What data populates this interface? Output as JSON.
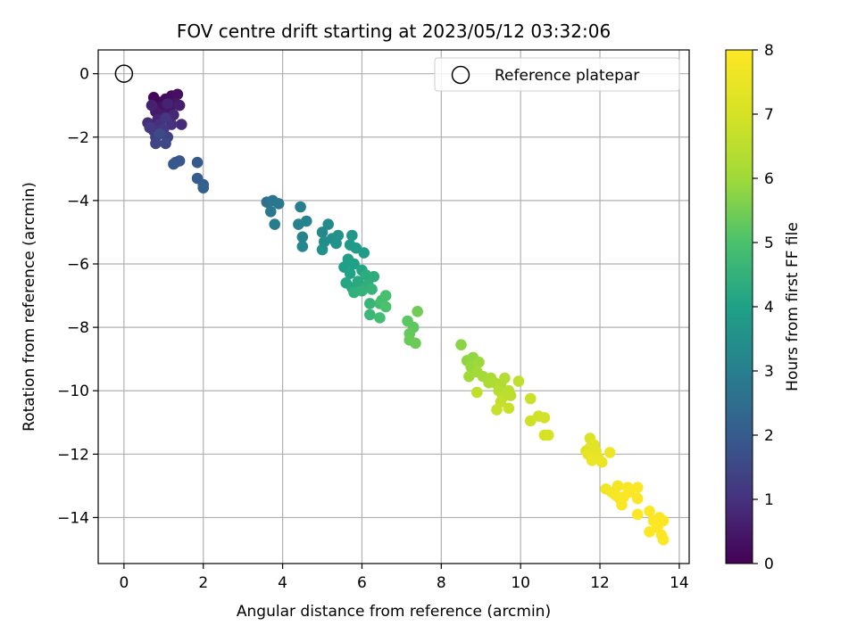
{
  "chart_data": {
    "type": "scatter",
    "title": "FOV centre drift starting at 2023/05/12 03:32:06",
    "xlabel": "Angular distance from reference (arcmin)",
    "ylabel": "Rotation from reference (arcmin)",
    "xlim": [
      -0.65,
      14.25
    ],
    "ylim": [
      -15.45,
      0.75
    ],
    "x_ticks": [
      0,
      2,
      4,
      6,
      8,
      10,
      12,
      14
    ],
    "y_ticks": [
      0,
      -2,
      -4,
      -6,
      -8,
      -10,
      -12,
      -14
    ],
    "x_tick_labels": [
      "0",
      "2",
      "4",
      "6",
      "8",
      "10",
      "12",
      "14"
    ],
    "y_tick_labels": [
      "0",
      "−2",
      "−4",
      "−6",
      "−8",
      "−10",
      "−12",
      "−14"
    ],
    "grid": true,
    "legend": {
      "placement": "top-right",
      "label": "Reference platepar",
      "marker": "open-circle"
    },
    "reference_point": {
      "x": 0,
      "y": 0
    },
    "colorbar": {
      "label": "Hours from first FF file",
      "range": [
        0,
        8
      ],
      "ticks": [
        0,
        1,
        2,
        3,
        4,
        5,
        6,
        7,
        8
      ],
      "tick_labels": [
        "0",
        "1",
        "2",
        "3",
        "4",
        "5",
        "6",
        "7",
        "8"
      ],
      "colormap": "viridis"
    },
    "points": [
      {
        "x": 0.75,
        "y": -0.75,
        "h": 0.1
      },
      {
        "x": 0.9,
        "y": -0.9,
        "h": 0.15
      },
      {
        "x": 1.05,
        "y": -0.8,
        "h": 0.2
      },
      {
        "x": 1.2,
        "y": -0.7,
        "h": 0.25
      },
      {
        "x": 1.35,
        "y": -0.65,
        "h": 0.3
      },
      {
        "x": 0.95,
        "y": -1.05,
        "h": 0.35
      },
      {
        "x": 1.15,
        "y": -1.1,
        "h": 0.4
      },
      {
        "x": 1.3,
        "y": -0.95,
        "h": 0.45
      },
      {
        "x": 0.8,
        "y": -1.2,
        "h": 0.5
      },
      {
        "x": 1.0,
        "y": -1.3,
        "h": 0.55
      },
      {
        "x": 1.4,
        "y": -1.0,
        "h": 0.6
      },
      {
        "x": 0.7,
        "y": -1.0,
        "h": 0.65
      },
      {
        "x": 1.1,
        "y": -0.95,
        "h": 0.7
      },
      {
        "x": 0.85,
        "y": -1.45,
        "h": 0.75
      },
      {
        "x": 1.25,
        "y": -1.3,
        "h": 0.8
      },
      {
        "x": 1.45,
        "y": -1.6,
        "h": 0.85
      },
      {
        "x": 0.6,
        "y": -1.55,
        "h": 0.9
      },
      {
        "x": 0.9,
        "y": -1.6,
        "h": 0.95
      },
      {
        "x": 1.2,
        "y": -1.6,
        "h": 1.0
      },
      {
        "x": 0.75,
        "y": -1.8,
        "h": 1.05
      },
      {
        "x": 1.05,
        "y": -1.4,
        "h": 1.1
      },
      {
        "x": 0.65,
        "y": -1.7,
        "h": 1.15
      },
      {
        "x": 1.0,
        "y": -1.75,
        "h": 1.2
      },
      {
        "x": 0.8,
        "y": -2.0,
        "h": 1.3
      },
      {
        "x": 1.1,
        "y": -2.0,
        "h": 1.35
      },
      {
        "x": 0.8,
        "y": -2.2,
        "h": 1.45
      },
      {
        "x": 1.05,
        "y": -2.2,
        "h": 1.55
      },
      {
        "x": 0.9,
        "y": -1.9,
        "h": 1.6
      },
      {
        "x": 1.3,
        "y": -2.8,
        "h": 1.75
      },
      {
        "x": 1.4,
        "y": -2.75,
        "h": 1.85
      },
      {
        "x": 1.25,
        "y": -2.85,
        "h": 1.9
      },
      {
        "x": 1.85,
        "y": -2.8,
        "h": 1.95
      },
      {
        "x": 1.85,
        "y": -3.3,
        "h": 2.0
      },
      {
        "x": 2.0,
        "y": -3.5,
        "h": 2.1
      },
      {
        "x": 2.0,
        "y": -3.6,
        "h": 2.15
      },
      {
        "x": 3.6,
        "y": -4.05,
        "h": 2.6
      },
      {
        "x": 3.75,
        "y": -4.0,
        "h": 2.7
      },
      {
        "x": 3.9,
        "y": -4.1,
        "h": 2.8
      },
      {
        "x": 3.7,
        "y": -4.35,
        "h": 2.85
      },
      {
        "x": 3.8,
        "y": -4.75,
        "h": 2.9
      },
      {
        "x": 4.45,
        "y": -4.2,
        "h": 3.0
      },
      {
        "x": 4.4,
        "y": -4.75,
        "h": 3.05
      },
      {
        "x": 4.6,
        "y": -4.65,
        "h": 3.1
      },
      {
        "x": 4.5,
        "y": -5.15,
        "h": 3.15
      },
      {
        "x": 4.5,
        "y": -5.45,
        "h": 3.2
      },
      {
        "x": 5.0,
        "y": -5.0,
        "h": 3.3
      },
      {
        "x": 5.15,
        "y": -4.75,
        "h": 3.35
      },
      {
        "x": 5.05,
        "y": -5.3,
        "h": 3.4
      },
      {
        "x": 5.25,
        "y": -5.2,
        "h": 3.45
      },
      {
        "x": 5.0,
        "y": -5.55,
        "h": 3.5
      },
      {
        "x": 5.4,
        "y": -5.1,
        "h": 3.55
      },
      {
        "x": 5.35,
        "y": -5.35,
        "h": 3.6
      },
      {
        "x": 5.75,
        "y": -5.1,
        "h": 3.7
      },
      {
        "x": 5.7,
        "y": -5.4,
        "h": 3.75
      },
      {
        "x": 5.85,
        "y": -5.5,
        "h": 3.8
      },
      {
        "x": 6.05,
        "y": -5.65,
        "h": 3.85
      },
      {
        "x": 5.65,
        "y": -5.85,
        "h": 3.9
      },
      {
        "x": 5.55,
        "y": -6.1,
        "h": 3.95
      },
      {
        "x": 5.8,
        "y": -6.0,
        "h": 4.0
      },
      {
        "x": 5.7,
        "y": -6.3,
        "h": 4.05
      },
      {
        "x": 6.0,
        "y": -6.2,
        "h": 4.1
      },
      {
        "x": 5.6,
        "y": -6.6,
        "h": 4.15
      },
      {
        "x": 5.75,
        "y": -6.75,
        "h": 4.2
      },
      {
        "x": 5.9,
        "y": -6.55,
        "h": 4.25
      },
      {
        "x": 6.1,
        "y": -6.35,
        "h": 4.3
      },
      {
        "x": 6.3,
        "y": -6.4,
        "h": 4.35
      },
      {
        "x": 6.15,
        "y": -6.65,
        "h": 4.4
      },
      {
        "x": 5.8,
        "y": -6.9,
        "h": 4.45
      },
      {
        "x": 6.0,
        "y": -6.85,
        "h": 4.5
      },
      {
        "x": 6.25,
        "y": -6.8,
        "h": 4.55
      },
      {
        "x": 6.2,
        "y": -7.25,
        "h": 4.6
      },
      {
        "x": 6.2,
        "y": -7.6,
        "h": 4.7
      },
      {
        "x": 6.45,
        "y": -7.25,
        "h": 4.8
      },
      {
        "x": 6.45,
        "y": -7.7,
        "h": 4.85
      },
      {
        "x": 6.5,
        "y": -7.15,
        "h": 4.9
      },
      {
        "x": 6.6,
        "y": -7.0,
        "h": 4.95
      },
      {
        "x": 6.6,
        "y": -7.35,
        "h": 5.0
      },
      {
        "x": 7.15,
        "y": -7.8,
        "h": 5.2
      },
      {
        "x": 7.3,
        "y": -8.0,
        "h": 5.25
      },
      {
        "x": 7.2,
        "y": -8.2,
        "h": 5.3
      },
      {
        "x": 7.2,
        "y": -8.4,
        "h": 5.35
      },
      {
        "x": 7.35,
        "y": -8.5,
        "h": 5.4
      },
      {
        "x": 7.4,
        "y": -7.5,
        "h": 5.45
      },
      {
        "x": 8.5,
        "y": -8.55,
        "h": 5.75
      },
      {
        "x": 8.65,
        "y": -9.05,
        "h": 5.8
      },
      {
        "x": 8.8,
        "y": -8.95,
        "h": 5.85
      },
      {
        "x": 8.75,
        "y": -9.25,
        "h": 5.9
      },
      {
        "x": 8.95,
        "y": -9.1,
        "h": 5.95
      },
      {
        "x": 8.7,
        "y": -9.55,
        "h": 6.0
      },
      {
        "x": 8.9,
        "y": -9.4,
        "h": 6.05
      },
      {
        "x": 9.05,
        "y": -9.55,
        "h": 6.1
      },
      {
        "x": 9.25,
        "y": -9.6,
        "h": 6.15
      },
      {
        "x": 9.2,
        "y": -9.75,
        "h": 6.2
      },
      {
        "x": 9.35,
        "y": -9.75,
        "h": 6.25
      },
      {
        "x": 9.5,
        "y": -9.8,
        "h": 6.3
      },
      {
        "x": 9.6,
        "y": -9.6,
        "h": 6.35
      },
      {
        "x": 9.45,
        "y": -10.0,
        "h": 6.4
      },
      {
        "x": 9.7,
        "y": -10.0,
        "h": 6.45
      },
      {
        "x": 9.55,
        "y": -10.2,
        "h": 6.5
      },
      {
        "x": 9.75,
        "y": -10.15,
        "h": 6.55
      },
      {
        "x": 8.9,
        "y": -10.05,
        "h": 6.6
      },
      {
        "x": 9.95,
        "y": -9.7,
        "h": 6.6
      },
      {
        "x": 9.5,
        "y": -10.35,
        "h": 6.65
      },
      {
        "x": 9.4,
        "y": -10.6,
        "h": 6.7
      },
      {
        "x": 9.7,
        "y": -10.55,
        "h": 6.75
      },
      {
        "x": 10.25,
        "y": -10.25,
        "h": 6.8
      },
      {
        "x": 10.25,
        "y": -10.95,
        "h": 6.85
      },
      {
        "x": 10.45,
        "y": -10.8,
        "h": 6.9
      },
      {
        "x": 10.6,
        "y": -10.85,
        "h": 6.95
      },
      {
        "x": 10.6,
        "y": -11.4,
        "h": 7.0
      },
      {
        "x": 10.7,
        "y": -11.4,
        "h": 7.05
      },
      {
        "x": 11.75,
        "y": -11.5,
        "h": 7.15
      },
      {
        "x": 11.65,
        "y": -11.9,
        "h": 7.2
      },
      {
        "x": 11.75,
        "y": -11.8,
        "h": 7.25
      },
      {
        "x": 11.85,
        "y": -11.7,
        "h": 7.3
      },
      {
        "x": 11.9,
        "y": -11.9,
        "h": 7.35
      },
      {
        "x": 11.7,
        "y": -12.0,
        "h": 7.4
      },
      {
        "x": 11.95,
        "y": -12.1,
        "h": 7.45
      },
      {
        "x": 11.8,
        "y": -12.2,
        "h": 7.5
      },
      {
        "x": 12.05,
        "y": -12.25,
        "h": 7.55
      },
      {
        "x": 12.25,
        "y": -11.95,
        "h": 7.6
      },
      {
        "x": 12.15,
        "y": -13.1,
        "h": 7.7
      },
      {
        "x": 12.3,
        "y": -13.2,
        "h": 7.75
      },
      {
        "x": 12.45,
        "y": -13.0,
        "h": 7.8
      },
      {
        "x": 12.4,
        "y": -13.3,
        "h": 7.85
      },
      {
        "x": 12.5,
        "y": -13.4,
        "h": 7.85
      },
      {
        "x": 12.55,
        "y": -13.6,
        "h": 7.9
      },
      {
        "x": 12.6,
        "y": -13.35,
        "h": 7.9
      },
      {
        "x": 12.7,
        "y": -13.05,
        "h": 7.9
      },
      {
        "x": 12.75,
        "y": -13.2,
        "h": 7.95
      },
      {
        "x": 12.95,
        "y": -13.05,
        "h": 7.95
      },
      {
        "x": 12.95,
        "y": -13.4,
        "h": 7.95
      },
      {
        "x": 12.95,
        "y": -13.9,
        "h": 8.0
      },
      {
        "x": 13.25,
        "y": -13.8,
        "h": 8.0
      },
      {
        "x": 13.35,
        "y": -14.1,
        "h": 8.0
      },
      {
        "x": 13.5,
        "y": -14.0,
        "h": 8.0
      },
      {
        "x": 13.25,
        "y": -14.45,
        "h": 8.0
      },
      {
        "x": 13.45,
        "y": -14.3,
        "h": 8.0
      },
      {
        "x": 13.6,
        "y": -14.1,
        "h": 8.0
      },
      {
        "x": 13.55,
        "y": -14.55,
        "h": 8.0
      },
      {
        "x": 13.6,
        "y": -14.7,
        "h": 8.0
      }
    ]
  }
}
